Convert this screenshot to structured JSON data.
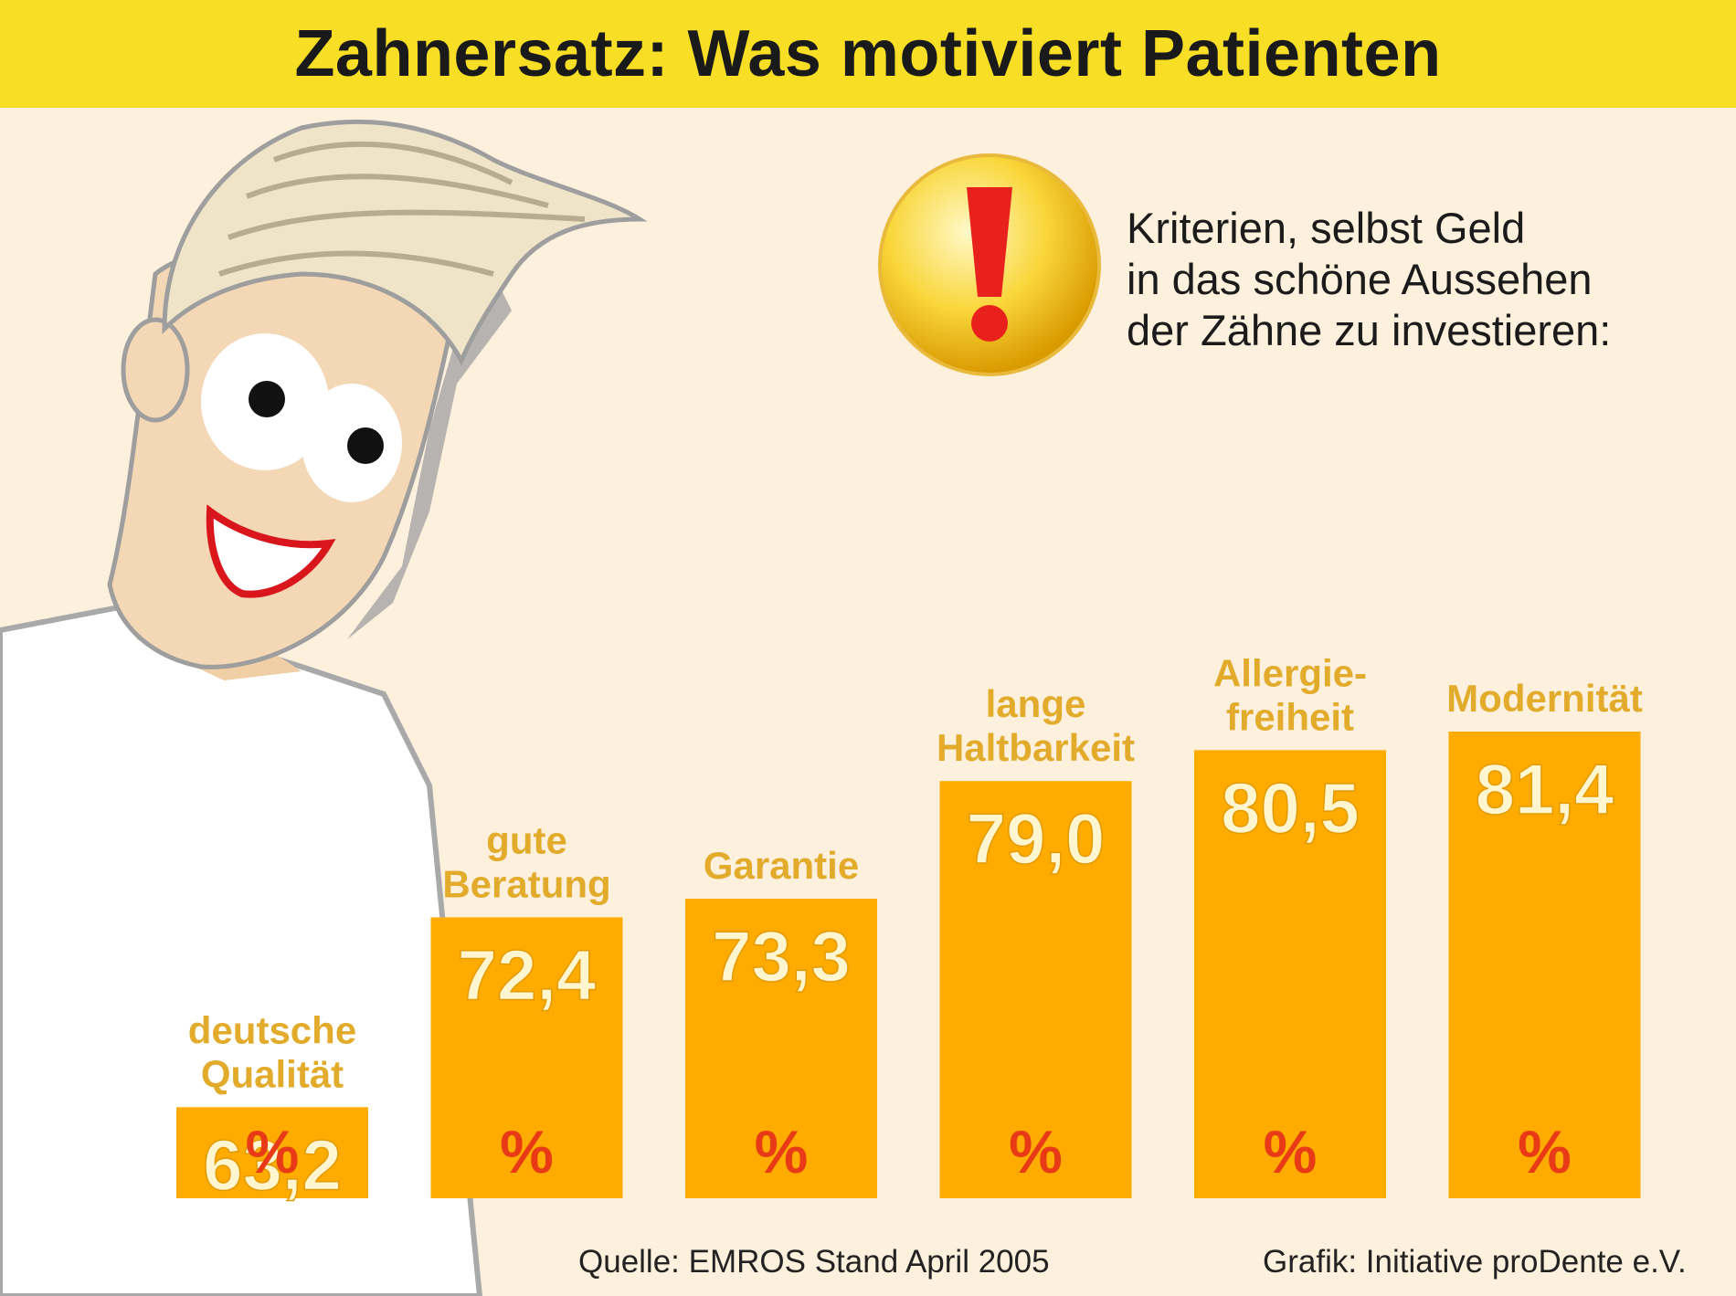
{
  "title": "Zahnersatz: Was motiviert Patienten",
  "subtitle_lines": [
    "Kriterien, selbst Geld",
    "in das schöne Aussehen",
    "der Zähne zu investieren:"
  ],
  "source": "Quelle: EMROS Stand April 2005",
  "credit": "Grafik: Initiative proDente e.V.",
  "colors": {
    "banner": "#f8de25",
    "background": "#fdf1dd",
    "bar": "#ffab00",
    "bar_label": "#fff6cf",
    "category_label": "#e3ab2c",
    "percent_sign": "#e83a16",
    "exclamation": "#e8211c"
  },
  "chart_data": {
    "type": "bar",
    "title": "Zahnersatz: Was motiviert Patienten",
    "xlabel": "",
    "ylabel": "",
    "unit": "%",
    "categories": [
      [
        "deutsche",
        "Qualität"
      ],
      [
        "gute",
        "Beratung"
      ],
      [
        "Garantie"
      ],
      [
        "lange",
        "Haltbarkeit"
      ],
      [
        "Allergie-",
        "freiheit"
      ],
      [
        "Modernität"
      ]
    ],
    "values": [
      63.2,
      72.4,
      73.3,
      79.0,
      80.5,
      81.4
    ],
    "value_labels": [
      "63,2",
      "72,4",
      "73,3",
      "79,0",
      "80,5",
      "81,4"
    ],
    "grid": false,
    "legend": "none"
  }
}
